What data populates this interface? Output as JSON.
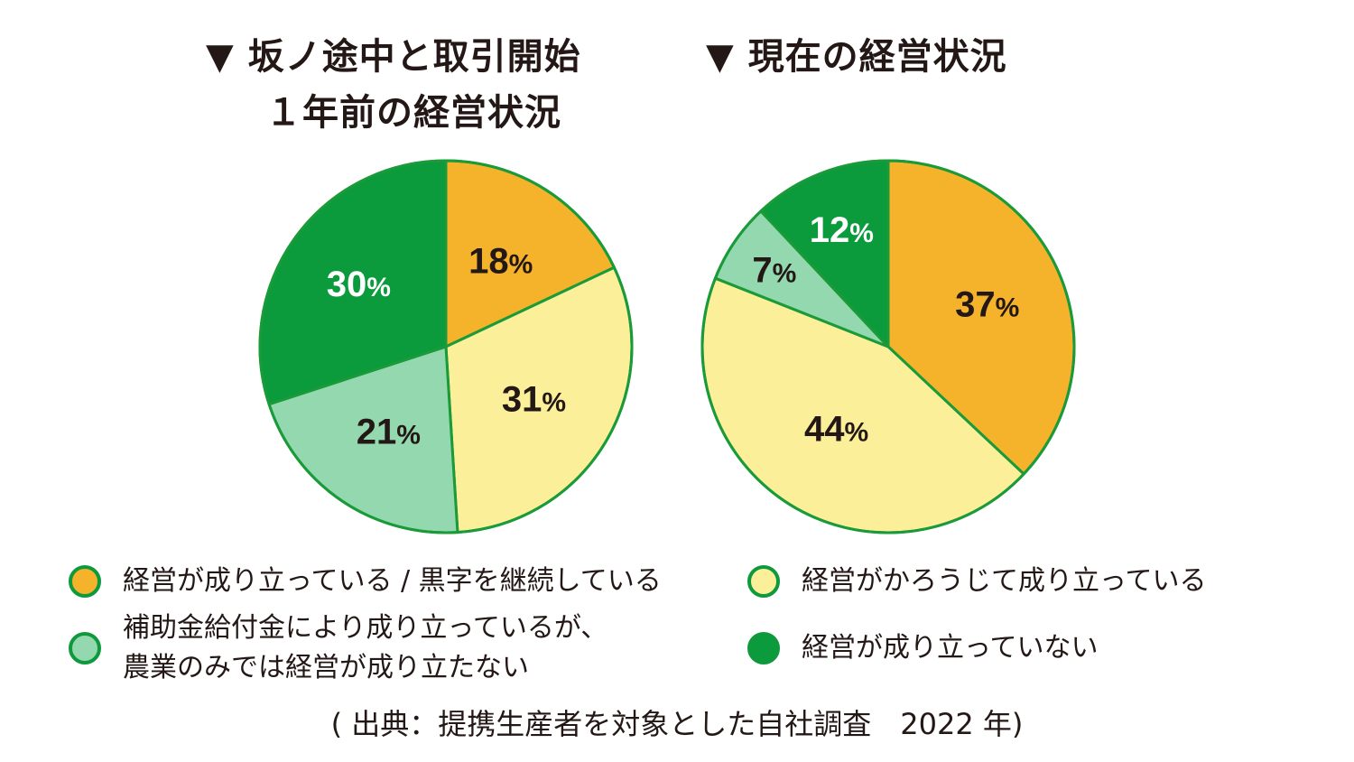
{
  "colors": {
    "outline": "#1a9a38",
    "profitable": "#f5b32c",
    "barely": "#fbef9a",
    "subsidy": "#93d8ae",
    "not_viable": "#0b9a3c"
  },
  "chart_data": [
    {
      "type": "pie",
      "title": "▼ 坂ノ途中と取引開始１年前の経営状況",
      "title_lines": [
        "▼ 坂ノ途中と取引開始",
        "１年前の経営状況"
      ],
      "slices": [
        {
          "key": "profitable",
          "label": "経営が成り立っている / 黒字を継続している",
          "value": 18,
          "value_label": "18",
          "unit": "%",
          "label_color": "#231815"
        },
        {
          "key": "barely",
          "label": "経営がかろうじて成り立っている",
          "value": 31,
          "value_label": "31",
          "unit": "%",
          "label_color": "#231815"
        },
        {
          "key": "subsidy",
          "label": "補助金給付金により成り立っているが、農業のみでは経営が成り立たない",
          "value": 21,
          "value_label": "21",
          "unit": "%",
          "label_color": "#231815"
        },
        {
          "key": "not_viable",
          "label": "経営が成り立っていない",
          "value": 30,
          "value_label": "30",
          "unit": "%",
          "label_color": "#ffffff"
        }
      ]
    },
    {
      "type": "pie",
      "title": "▼ 現在の経営状況",
      "title_lines": [
        "▼ 現在の経営状況"
      ],
      "slices": [
        {
          "key": "profitable",
          "label": "経営が成り立っている / 黒字を継続している",
          "value": 37,
          "value_label": "37",
          "unit": "%",
          "label_color": "#231815"
        },
        {
          "key": "barely",
          "label": "経営がかろうじて成り立っている",
          "value": 44,
          "value_label": "44",
          "unit": "%",
          "label_color": "#231815"
        },
        {
          "key": "subsidy",
          "label": "補助金給付金により成り立っているが、農業のみでは経営が成り立たない",
          "value": 7,
          "value_label": "7",
          "unit": "%",
          "label_color": "#231815"
        },
        {
          "key": "not_viable",
          "label": "経営が成り立っていない",
          "value": 12,
          "value_label": "12",
          "unit": "%",
          "label_color": "#ffffff"
        }
      ]
    }
  ],
  "legend": [
    {
      "key": "profitable",
      "lines": [
        "経営が成り立っている / 黒字を継続している"
      ]
    },
    {
      "key": "barely",
      "lines": [
        "経営がかろうじて成り立っている"
      ]
    },
    {
      "key": "subsidy",
      "lines": [
        "補助金給付金により成り立っているが、",
        "農業のみでは経営が成り立たない"
      ]
    },
    {
      "key": "not_viable",
      "lines": [
        "経営が成り立っていない"
      ]
    }
  ],
  "source": "( 出典：提携生産者を対象とした自社調査　2022 年)"
}
